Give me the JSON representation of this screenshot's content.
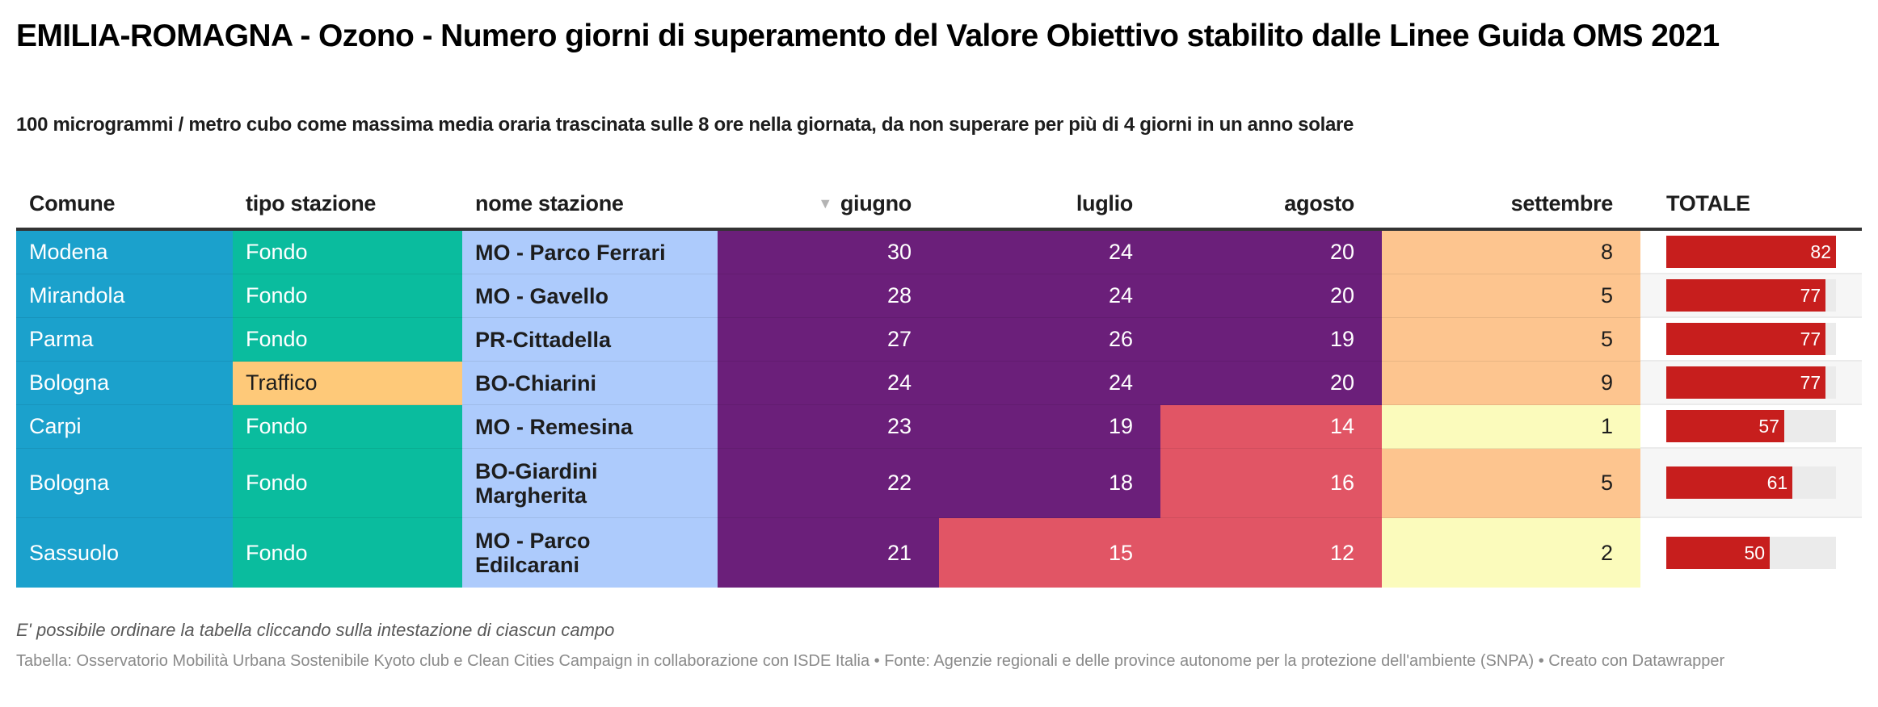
{
  "header": {
    "title": "EMILIA-ROMAGNA - Ozono - Numero giorni di superamento del Valore Obiettivo stabilito dalle Linee Guida OMS 2021",
    "subtitle": "100 microgrammi / metro cubo come massima media oraria trascinata sulle 8 ore nella giornata, da non superare per più di 4 giorni in un anno solare"
  },
  "colors": {
    "comune_bg": "#1ba1cc",
    "fondo_bg": "#0abc9e",
    "traffico_bg": "#fec979",
    "nome_bg": "#adcbfc",
    "high_bg": "#6b1f7a",
    "mid_bg": "#e15565",
    "low_bg": "#fdc58f",
    "lowest_bg": "#fbfbbc",
    "bar_fill": "#c71e1d",
    "bar_track": "#ebebeb"
  },
  "icons": {
    "sort": "sort-descending-triangle-icon",
    "sort_glyph": "▼"
  },
  "chart_data": {
    "type": "table",
    "sorted_by": "giugno",
    "sort_order": "descending",
    "columns": [
      "Comune",
      "tipo stazione",
      "nome stazione",
      "giugno",
      "luglio",
      "agosto",
      "settembre",
      "TOTALE"
    ],
    "total_max": 82,
    "rows": [
      {
        "comune": "Modena",
        "tipo": "Fondo",
        "nome": "MO - Parco Ferrari",
        "giugno": 30,
        "luglio": 24,
        "agosto": 20,
        "settembre": 8,
        "totale": 82
      },
      {
        "comune": "Mirandola",
        "tipo": "Fondo",
        "nome": "MO - Gavello",
        "giugno": 28,
        "luglio": 24,
        "agosto": 20,
        "settembre": 5,
        "totale": 77
      },
      {
        "comune": "Parma",
        "tipo": "Fondo",
        "nome": "PR-Cittadella",
        "giugno": 27,
        "luglio": 26,
        "agosto": 19,
        "settembre": 5,
        "totale": 77
      },
      {
        "comune": "Bologna",
        "tipo": "Traffico",
        "nome": "BO-Chiarini",
        "giugno": 24,
        "luglio": 24,
        "agosto": 20,
        "settembre": 9,
        "totale": 77
      },
      {
        "comune": "Carpi",
        "tipo": "Fondo",
        "nome": "MO - Remesina",
        "giugno": 23,
        "luglio": 19,
        "agosto": 14,
        "settembre": 1,
        "totale": 57
      },
      {
        "comune": "Bologna",
        "tipo": "Fondo",
        "nome": "BO-Giardini Margherita",
        "giugno": 22,
        "luglio": 18,
        "agosto": 16,
        "settembre": 5,
        "totale": 61
      },
      {
        "comune": "Sassuolo",
        "tipo": "Fondo",
        "nome": "MO - Parco Edilcarani",
        "giugno": 21,
        "luglio": 15,
        "agosto": 12,
        "settembre": 2,
        "totale": 50
      }
    ]
  },
  "footer": {
    "note": "E' possibile ordinare la tabella cliccando sulla intestazione di ciascun campo",
    "source": "Tabella: Osservatorio Mobilità Urbana Sostenibile Kyoto club e Clean Cities Campaign in collaborazione con ISDE Italia • Fonte: Agenzie regionali e delle province autonome per la protezione dell'ambiente (SNPA) • Creato con Datawrapper"
  }
}
